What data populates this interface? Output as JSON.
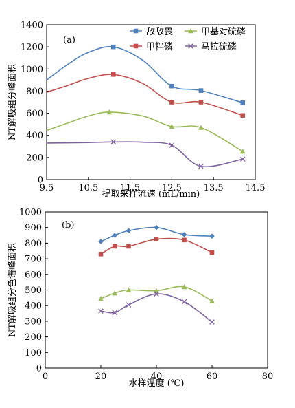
{
  "chart_data": [
    {
      "id": "a",
      "type": "line",
      "panel_label": "(a)",
      "xlabel": "提取采样流速 (mL/min)",
      "ylabel": "NT解吸组分峰面积",
      "xlim": [
        9.5,
        14.5
      ],
      "ylim": [
        0,
        1400
      ],
      "xticks": [
        9.5,
        10.5,
        11.5,
        12.5,
        13.5,
        14.5
      ],
      "yticks": [
        0,
        200,
        400,
        600,
        800,
        1000,
        1200,
        1400
      ],
      "legend_position": "top-right",
      "series": [
        {
          "name": "敌敌畏",
          "color": "#4f81bd",
          "marker": "square",
          "x": [
            11.1,
            12.5,
            13.2,
            14.2
          ],
          "y": [
            1200,
            845,
            805,
            695
          ],
          "curve_x": [
            9.5,
            10.0,
            10.5,
            11.1,
            11.8,
            12.5,
            13.2,
            14.2
          ],
          "curve_y": [
            900,
            1040,
            1150,
            1200,
            1080,
            845,
            805,
            695
          ]
        },
        {
          "name": "甲拌磷",
          "color": "#c0504d",
          "marker": "square",
          "x": [
            11.1,
            12.5,
            13.2,
            14.2
          ],
          "y": [
            950,
            700,
            700,
            580
          ],
          "curve_x": [
            9.5,
            10.0,
            10.5,
            11.1,
            11.8,
            12.5,
            13.2,
            14.2
          ],
          "curve_y": [
            790,
            850,
            915,
            950,
            870,
            700,
            700,
            580
          ]
        },
        {
          "name": "甲基对硫磷",
          "color": "#9bbb59",
          "marker": "triangle",
          "x": [
            11.0,
            12.5,
            13.2,
            14.2
          ],
          "y": [
            610,
            480,
            470,
            255
          ],
          "curve_x": [
            9.5,
            10.0,
            10.5,
            11.0,
            11.8,
            12.5,
            13.2,
            14.2
          ],
          "curve_y": [
            445,
            510,
            575,
            610,
            575,
            480,
            470,
            255
          ]
        },
        {
          "name": "马拉硫磷",
          "color": "#8064a2",
          "marker": "x",
          "x": [
            11.1,
            12.5,
            13.2,
            14.2
          ],
          "y": [
            340,
            310,
            120,
            185
          ],
          "curve_x": [
            9.5,
            10.5,
            11.1,
            11.8,
            12.5,
            13.2,
            14.2
          ],
          "curve_y": [
            330,
            335,
            340,
            338,
            310,
            120,
            185
          ]
        }
      ]
    },
    {
      "id": "b",
      "type": "line",
      "panel_label": "(b)",
      "xlabel": "水样温度 (℃)",
      "ylabel": "NT解吸组分色谱峰面积",
      "xlim": [
        0,
        80
      ],
      "ylim": [
        0,
        1000
      ],
      "xticks": [
        0,
        20,
        40,
        60,
        80
      ],
      "yticks": [
        0,
        100,
        200,
        300,
        400,
        500,
        600,
        700,
        800,
        900,
        1000
      ],
      "series": [
        {
          "name": "敌敌畏",
          "color": "#4f81bd",
          "marker": "diamond",
          "x": [
            20,
            25,
            30,
            40,
            50,
            60
          ],
          "y": [
            810,
            850,
            880,
            900,
            855,
            845
          ]
        },
        {
          "name": "甲拌磷",
          "color": "#c0504d",
          "marker": "square",
          "x": [
            20,
            25,
            30,
            40,
            50,
            60
          ],
          "y": [
            730,
            780,
            780,
            825,
            820,
            740
          ]
        },
        {
          "name": "甲基对硫磷",
          "color": "#9bbb59",
          "marker": "triangle",
          "x": [
            20,
            25,
            30,
            40,
            50,
            60
          ],
          "y": [
            445,
            480,
            500,
            495,
            520,
            430
          ]
        },
        {
          "name": "马拉硫磷",
          "color": "#8064a2",
          "marker": "x",
          "x": [
            20,
            25,
            30,
            40,
            50,
            60
          ],
          "y": [
            365,
            355,
            405,
            475,
            425,
            295
          ]
        }
      ]
    }
  ]
}
